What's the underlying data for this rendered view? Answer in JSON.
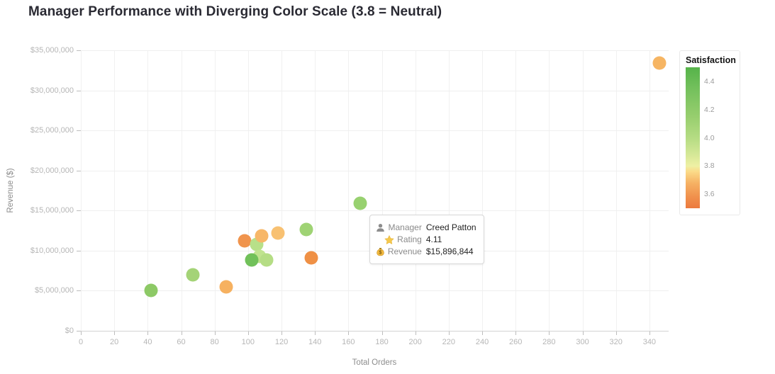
{
  "page": {
    "title": "Manager Performance with Diverging Color Scale (3.8 = Neutral)"
  },
  "chart_data": {
    "type": "scatter",
    "title": "Manager Performance with Diverging Color Scale (3.8 = Neutral)",
    "xlabel": "Total Orders",
    "ylabel": "Revenue ($)",
    "xlim": [
      0,
      351.5
    ],
    "ylim": [
      0,
      35000000
    ],
    "x_ticks": [
      0,
      20,
      40,
      60,
      80,
      100,
      120,
      140,
      160,
      180,
      200,
      220,
      240,
      260,
      280,
      300,
      320,
      340
    ],
    "y_ticks": [
      0,
      5000000,
      10000000,
      15000000,
      20000000,
      25000000,
      30000000,
      35000000
    ],
    "grid": true,
    "points": [
      {
        "orders": 42,
        "revenue": 5000000,
        "satisfaction": 4.15,
        "color": "#8dc966"
      },
      {
        "orders": 67,
        "revenue": 7000000,
        "satisfaction": 4.05,
        "color": "#a4d377"
      },
      {
        "orders": 87,
        "revenue": 5500000,
        "satisfaction": 3.7,
        "color": "#f6b160"
      },
      {
        "orders": 98,
        "revenue": 11200000,
        "satisfaction": 3.6,
        "color": "#f0944d"
      },
      {
        "orders": 105,
        "revenue": 10800000,
        "satisfaction": 3.95,
        "color": "#b8e089"
      },
      {
        "orders": 108,
        "revenue": 11800000,
        "satisfaction": 3.72,
        "color": "#f7b768"
      },
      {
        "orders": 107,
        "revenue": 9300000,
        "satisfaction": 3.9,
        "color": "#c0e38f"
      },
      {
        "orders": 102,
        "revenue": 8800000,
        "satisfaction": 4.3,
        "color": "#71c15a"
      },
      {
        "orders": 111,
        "revenue": 8800000,
        "satisfaction": 3.97,
        "color": "#b5dd85"
      },
      {
        "orders": 118,
        "revenue": 12200000,
        "satisfaction": 3.75,
        "color": "#f8c172"
      },
      {
        "orders": 135,
        "revenue": 12600000,
        "satisfaction": 4.08,
        "color": "#9fd374"
      },
      {
        "orders": 138,
        "revenue": 9100000,
        "satisfaction": 3.58,
        "color": "#ef9045"
      },
      {
        "manager": "Creed Patton",
        "orders": 167,
        "revenue": 15896844,
        "satisfaction": 4.11,
        "color": "#98d170"
      },
      {
        "orders": 346,
        "revenue": 33400000,
        "satisfaction": 3.7,
        "color": "#f6b563"
      }
    ],
    "colorbar": {
      "title": "Satisfaction",
      "domain": [
        3.5,
        4.5
      ],
      "neutral": 3.8,
      "ticks": [
        "4.4",
        "4.2",
        "4.0",
        "3.8",
        "3.6"
      ],
      "gradient": [
        [
          0,
          "#56b34a"
        ],
        [
          0.15,
          "#73c05c"
        ],
        [
          0.35,
          "#97ce6e"
        ],
        [
          0.5,
          "#b5dc83"
        ],
        [
          0.62,
          "#d5e897"
        ],
        [
          0.7,
          "#eef0a4"
        ],
        [
          0.74,
          "#fbda88"
        ],
        [
          0.82,
          "#f6b264"
        ],
        [
          0.92,
          "#f0904c"
        ],
        [
          1,
          "#ec7a3e"
        ]
      ]
    }
  },
  "tooltip": {
    "point_index": 12,
    "rows": [
      {
        "icon": "person-icon",
        "label": "Manager",
        "value": "Creed Patton"
      },
      {
        "icon": "star-icon",
        "label": "Rating",
        "value": "4.11"
      },
      {
        "icon": "money-bag-icon",
        "label": "Revenue",
        "value": "$15,896,844"
      }
    ]
  }
}
